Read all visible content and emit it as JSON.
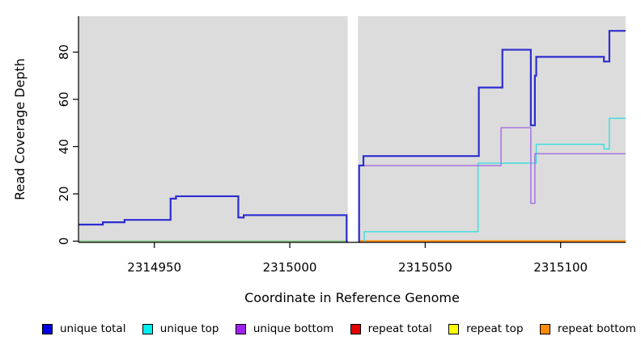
{
  "chart_data": {
    "type": "line",
    "title": "",
    "xlabel": "Coordinate in Reference Genome",
    "ylabel": "Read Coverage Depth",
    "xlim": [
      2314922,
      2315124
    ],
    "ylim": [
      0,
      95
    ],
    "x_ticks": [
      2314950,
      2315000,
      2315050,
      2315100
    ],
    "y_ticks": [
      0,
      20,
      40,
      60,
      80
    ],
    "gap_region_x": [
      2315021.4,
      2315025.2
    ],
    "plot_bg_color": "#dcdcdc",
    "grid": false,
    "legend_position": "bottom",
    "series": [
      {
        "name": "zero baseline left",
        "color": "#7fc97f",
        "width": 1.4,
        "end_x": 2315021.4,
        "points": [
          [
            2314922,
            0
          ]
        ]
      },
      {
        "name": "repeat bottom",
        "color": "#ff8c00",
        "width": 2.2,
        "end_x": 2315124,
        "points": [
          [
            2315025.3,
            0
          ]
        ]
      },
      {
        "name": "unique top",
        "color": "#35dede",
        "width": 1.4,
        "end_x": 2315124,
        "points": [
          [
            2315027.2,
            0
          ],
          [
            2315027.5,
            4
          ],
          [
            2315069.5,
            33
          ],
          [
            2315091,
            41
          ],
          [
            2315116,
            39
          ],
          [
            2315118,
            52
          ]
        ]
      },
      {
        "name": "unique bottom",
        "color": "#a26be0",
        "width": 1.4,
        "end_x": 2315124,
        "points": [
          [
            2315027.2,
            32
          ],
          [
            2315078,
            48
          ],
          [
            2315089,
            16
          ],
          [
            2315090.5,
            37
          ]
        ]
      },
      {
        "name": "unique total left",
        "color": "#2d2dd0",
        "width": 2.2,
        "end_x": 2315021.4,
        "points": [
          [
            2314922,
            7
          ],
          [
            2314931,
            8
          ],
          [
            2314939,
            9
          ],
          [
            2314956,
            18
          ],
          [
            2314958,
            19
          ],
          [
            2314981,
            10
          ],
          [
            2314983,
            11
          ],
          [
            2315021,
            0
          ]
        ]
      },
      {
        "name": "unique total right",
        "color": "#2d2dd0",
        "width": 2.2,
        "end_x": 2315124,
        "points": [
          [
            2315025.3,
            0
          ],
          [
            2315025.6,
            32
          ],
          [
            2315027.2,
            36
          ],
          [
            2315069.8,
            65
          ],
          [
            2315078.5,
            81
          ],
          [
            2315089,
            49
          ],
          [
            2315090.5,
            70
          ],
          [
            2315091,
            78
          ],
          [
            2315116,
            76
          ],
          [
            2315118,
            89
          ]
        ]
      }
    ]
  },
  "legend": {
    "items": [
      {
        "label": "unique total",
        "color": "#0000e0"
      },
      {
        "label": "unique top",
        "color": "#00eeee"
      },
      {
        "label": "unique bottom",
        "color": "#a020f0"
      },
      {
        "label": "repeat total",
        "color": "#e00000"
      },
      {
        "label": "repeat top",
        "color": "#ffff00"
      },
      {
        "label": "repeat bottom",
        "color": "#ff8c00"
      }
    ]
  }
}
